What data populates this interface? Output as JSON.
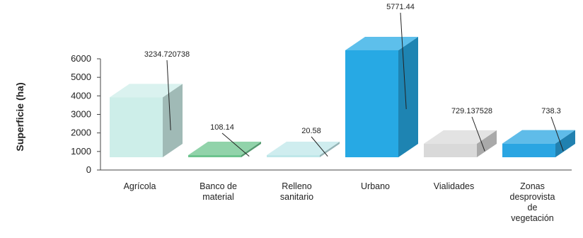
{
  "chart_data": {
    "type": "bar",
    "style": "3d",
    "ylabel": "Superficie (ha)",
    "xlabel": "",
    "ylim": [
      0,
      6000
    ],
    "yticks": [
      0,
      1000,
      2000,
      3000,
      4000,
      5000,
      6000
    ],
    "categories": [
      "Agrícola",
      "Banco de material",
      "Relleno sanitario",
      "Urbano",
      "Vialidades",
      "Zonas desprovista de vegetación"
    ],
    "category_lines": [
      [
        "Agrícola"
      ],
      [
        "Banco de",
        "material"
      ],
      [
        "Relleno",
        "sanitario"
      ],
      [
        "Urbano"
      ],
      [
        "Vialidades"
      ],
      [
        "Zonas",
        "desprovista",
        "de",
        "vegetación"
      ]
    ],
    "values": [
      3234.720738,
      108.14,
      20.58,
      5771.44,
      729.137528,
      738.3
    ],
    "value_labels": [
      "3234.720738",
      "108.14",
      "20.58",
      "5771.44",
      "729.137528",
      "738.3"
    ],
    "colors": [
      "#cdeee9",
      "#6cc48e",
      "#bfe7e9",
      "#27a9e4",
      "#d9d9d9",
      "#2aa5e2"
    ],
    "legend": "none",
    "grid": false
  }
}
